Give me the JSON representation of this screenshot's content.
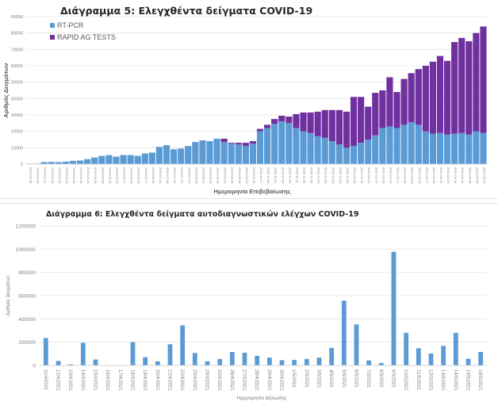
{
  "chart_data": [
    {
      "type": "bar",
      "stacked": true,
      "title": "Διάγραμμα 5: Ελεγχθέντα δείγματα COVID-19",
      "xlabel": "Ημερομηνία Επιβεβαίωσης",
      "ylabel": "Αριθμός Δειγμάτων",
      "ylim": [
        0,
        90000
      ],
      "yticks": [
        0,
        10000,
        20000,
        30000,
        40000,
        50000,
        60000,
        70000,
        80000,
        90000
      ],
      "grid": true,
      "legend_position": "top-left",
      "categories": [
        "2020-02-26",
        "2020-03-04",
        "2020-03-11",
        "2020-03-18",
        "2020-03-25",
        "2020-04-01",
        "2020-04-08",
        "2020-04-15",
        "2020-04-22",
        "2020-04-29",
        "2020-05-06",
        "2020-05-13",
        "2020-05-20",
        "2020-05-27",
        "2020-06-03",
        "2020-06-10",
        "2020-06-17",
        "2020-06-24",
        "2020-07-01",
        "2020-07-08",
        "2020-07-15",
        "2020-07-22",
        "2020-07-29",
        "2020-08-05",
        "2020-08-12",
        "2020-08-19",
        "2020-08-26",
        "2020-09-02",
        "2020-09-09",
        "2020-09-16",
        "2020-09-23",
        "2020-09-30",
        "2020-10-07",
        "2020-10-14",
        "2020-10-21",
        "2020-10-28",
        "2020-11-04",
        "2020-11-11",
        "2020-11-18",
        "2020-11-25",
        "2020-12-02",
        "2020-12-09",
        "2020-12-16",
        "2020-12-23",
        "2020-12-30",
        "2021-01-06",
        "2021-01-13",
        "2021-01-20",
        "2021-01-27",
        "2021-02-03",
        "2021-02-10",
        "2021-02-17",
        "2021-02-24",
        "2021-03-03",
        "2021-03-10",
        "2021-03-17",
        "2021-03-24",
        "2021-03-31",
        "2021-04-07",
        "2021-04-14",
        "2021-04-21",
        "2021-04-28",
        "2021-05-05",
        "2021-05-12"
      ],
      "series": [
        {
          "name": "RT-PCR",
          "color": "#5b9bd5",
          "values": [
            200,
            300,
            1200,
            1300,
            1200,
            1500,
            2000,
            2200,
            3000,
            4000,
            5000,
            5500,
            4500,
            5500,
            5500,
            5000,
            6500,
            7000,
            10500,
            11500,
            9000,
            9500,
            11000,
            13500,
            14500,
            14000,
            15500,
            13500,
            12500,
            12000,
            11000,
            12500,
            20000,
            22000,
            24500,
            26000,
            25000,
            22000,
            20000,
            19000,
            17000,
            16000,
            14000,
            12000,
            10000,
            11000,
            13000,
            15000,
            17500,
            22000,
            23000,
            22000,
            24000,
            25500,
            24000,
            20000,
            18500,
            19000,
            18000,
            18500,
            19000,
            18000,
            20000,
            19000
          ]
        },
        {
          "name": "RAPID AG TESTS",
          "color": "#7030a0",
          "values": [
            0,
            0,
            0,
            0,
            0,
            0,
            0,
            0,
            0,
            0,
            0,
            0,
            0,
            0,
            0,
            0,
            0,
            0,
            0,
            0,
            0,
            0,
            0,
            0,
            0,
            0,
            0,
            2000,
            500,
            1000,
            2000,
            1500,
            1500,
            2000,
            3000,
            3500,
            4000,
            8500,
            11500,
            12500,
            15000,
            17000,
            19000,
            21000,
            22000,
            30000,
            28000,
            20000,
            26000,
            23000,
            30000,
            22000,
            28000,
            30000,
            34000,
            40000,
            44000,
            47000,
            45000,
            56000,
            58000,
            57000,
            60000,
            65000
          ]
        }
      ]
    },
    {
      "type": "bar",
      "title": "Διάγραμμα 6: Ελεγχθέντα δείγματα αυτοδιαγνωστικών ελέγχων COVID-19",
      "xlabel": "Ημερομηνία Δήλωσης",
      "ylabel": "Αριθμός Δειγμάτων",
      "ylim": [
        0,
        1200000
      ],
      "yticks": [
        0,
        200000,
        400000,
        600000,
        800000,
        1000000,
        1200000
      ],
      "grid": true,
      "series_color": "#5b9bd5",
      "categories": [
        "11/4/2021",
        "12/4/2021",
        "13/4/2021",
        "14/4/2021",
        "15/4/2021",
        "16/4/2021",
        "17/4/2021",
        "18/4/2021",
        "19/4/2021",
        "20/4/2021",
        "21/4/2021",
        "22/4/2021",
        "23/4/2021",
        "24/4/2021",
        "25/4/2021",
        "26/4/2021",
        "27/4/2021",
        "28/4/2021",
        "29/4/2021",
        "30/4/2021",
        "1/5/2021",
        "2/5/2021",
        "3/5/2021",
        "4/5/2021",
        "5/5/2021",
        "6/5/2021",
        "7/5/2021",
        "8/5/2021",
        "9/5/2021",
        "10/5/2021",
        "11/5/2021",
        "12/5/2021",
        "13/5/2021",
        "14/5/2021",
        "15/5/2021",
        "16/5/2021"
      ],
      "values": [
        235000,
        38000,
        9000,
        195000,
        51000,
        0,
        0,
        200000,
        71000,
        35000,
        182000,
        345000,
        107000,
        35000,
        55000,
        115000,
        109000,
        82000,
        67000,
        45000,
        47000,
        55000,
        67000,
        151000,
        557000,
        352000,
        43000,
        20000,
        977000,
        280000,
        148000,
        102000,
        168000,
        280000,
        57000,
        116000
      ]
    }
  ]
}
